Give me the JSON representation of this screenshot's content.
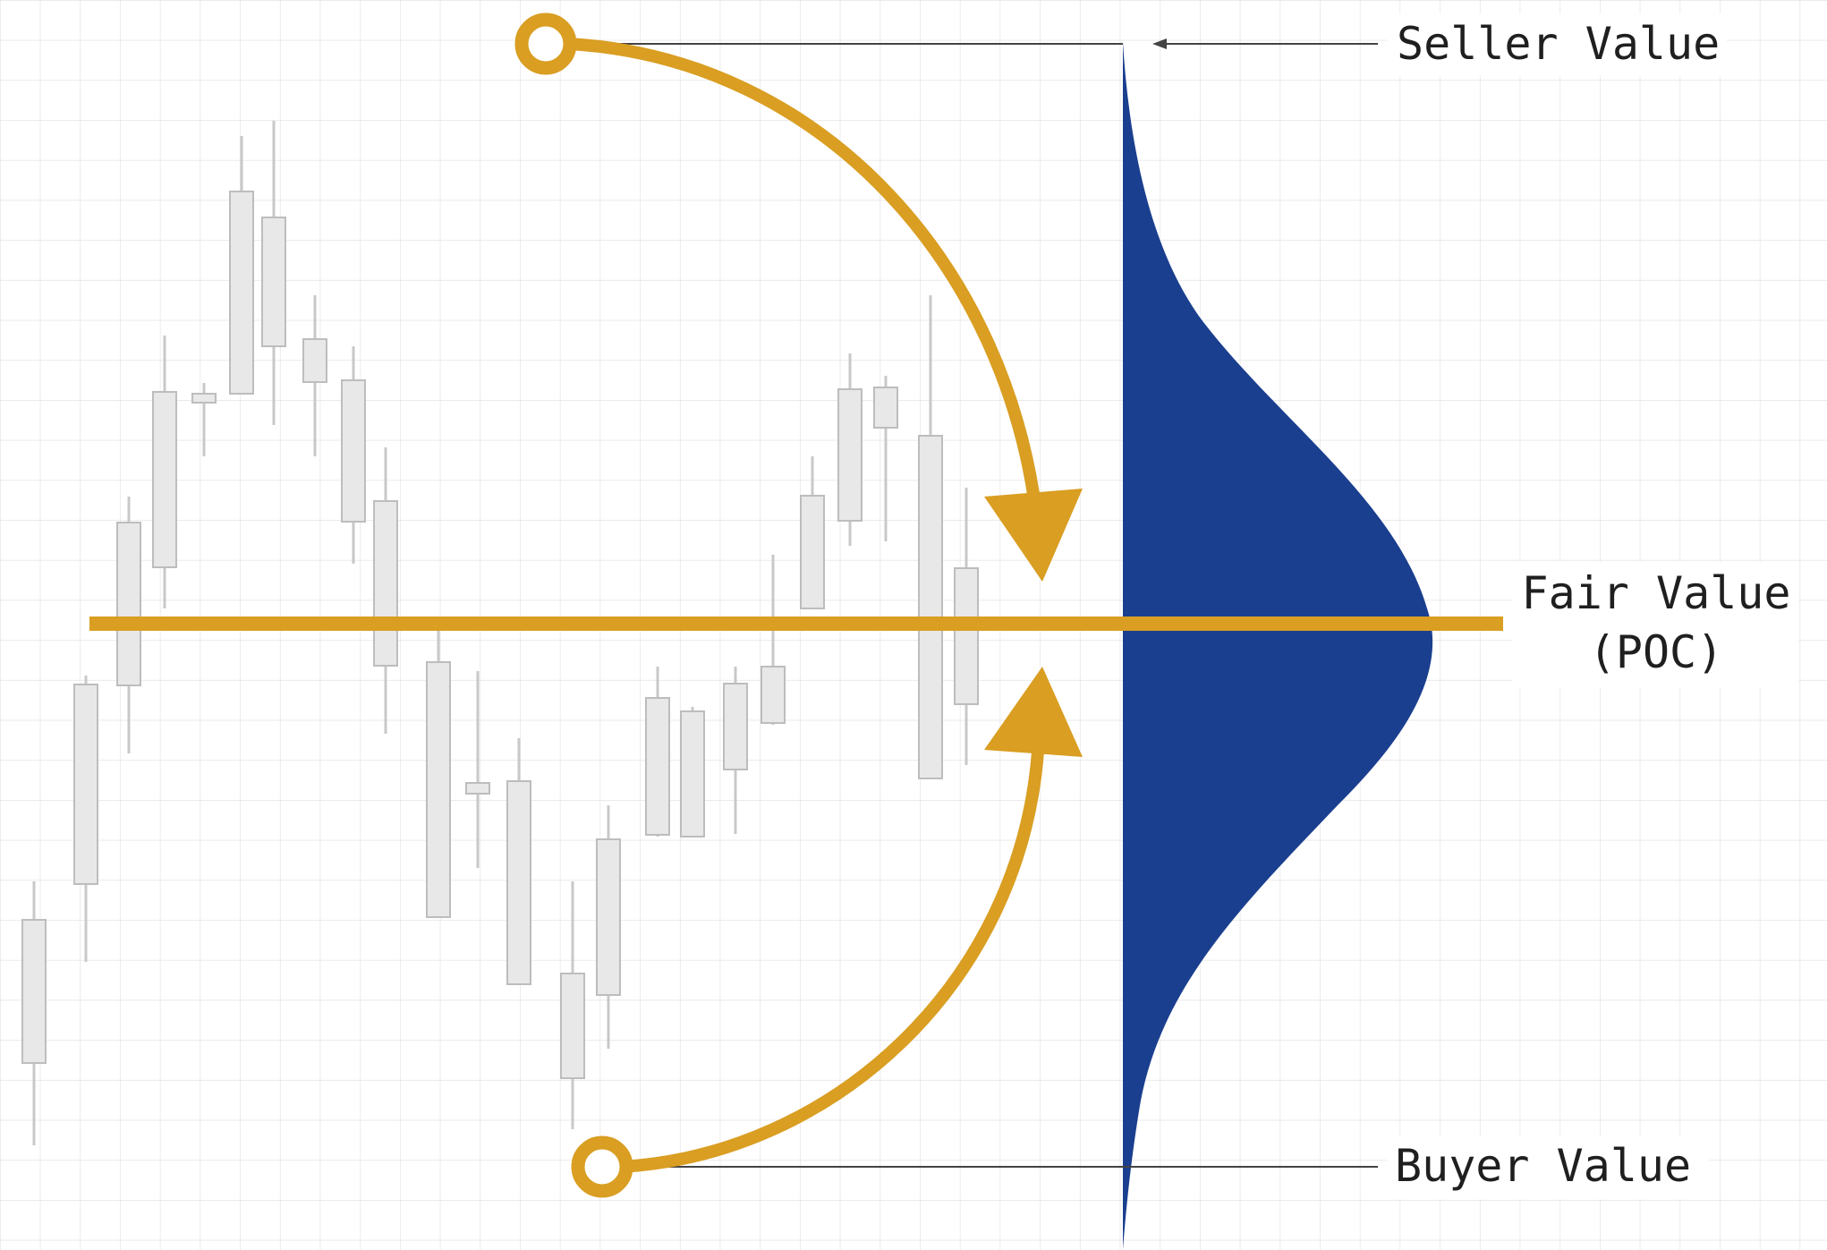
{
  "labels": {
    "seller_value": "Seller Value",
    "fair_value_line1": "Fair Value",
    "fair_value_line2": "(POC)",
    "buyer_value": "Buyer Value"
  },
  "colors": {
    "background": "#ffffff",
    "grid": "#e3e3e3",
    "gold": "#d99e22",
    "profile_blue": "#1b3f8f",
    "candle_fill": "#e8e8e8",
    "candle_stroke": "#bdbdbd",
    "text": "#1f1f1f",
    "leader_line": "#444444"
  }
}
